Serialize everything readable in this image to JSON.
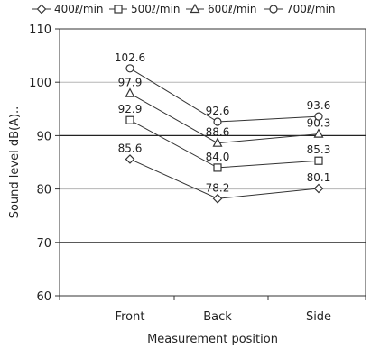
{
  "chart_data": {
    "type": "line",
    "xlabel": "Measurement position",
    "ylabel": "Sound level dB(A)..",
    "ylim": [
      60,
      110
    ],
    "yticks": [
      60,
      70,
      80,
      90,
      100,
      110
    ],
    "categories": [
      "Front",
      "Back",
      "Side"
    ],
    "legend_position": "top",
    "grid": true,
    "series": [
      {
        "name": "400ℓ/min",
        "marker": "diamond",
        "values": [
          85.6,
          78.2,
          80.1
        ],
        "labels": [
          "85.6",
          "78.2",
          "80.1"
        ]
      },
      {
        "name": "500ℓ/min",
        "marker": "square",
        "values": [
          92.9,
          84.0,
          85.3
        ],
        "labels": [
          "92.9",
          "84.0",
          "85.3"
        ]
      },
      {
        "name": "600ℓ/min",
        "marker": "triangle",
        "values": [
          97.9,
          88.6,
          90.3
        ],
        "labels": [
          "97.9",
          "88.6",
          "90.3"
        ]
      },
      {
        "name": "700ℓ/min",
        "marker": "circle",
        "values": [
          102.6,
          92.6,
          93.6
        ],
        "labels": [
          "102.6",
          "92.6",
          "93.6"
        ]
      }
    ]
  }
}
